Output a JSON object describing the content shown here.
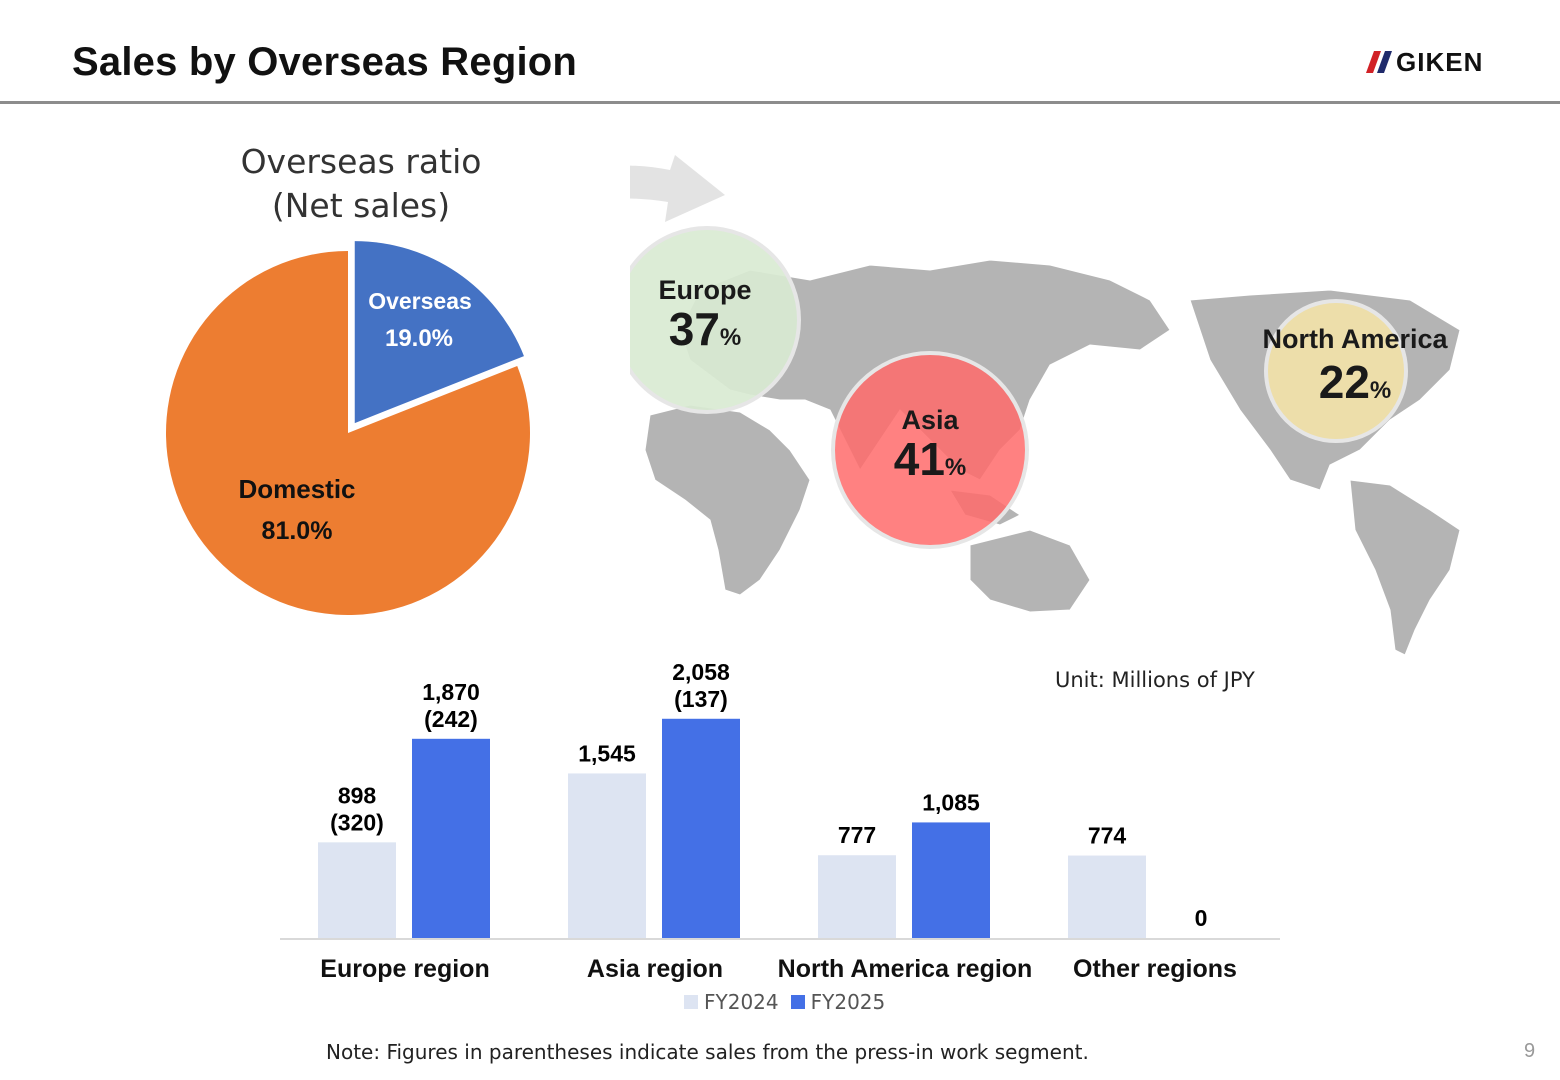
{
  "header": {
    "title": "Sales by Overseas Region",
    "logo_text": "GIKEN"
  },
  "ratio": {
    "title_line1": "Overseas ratio",
    "title_line2": "(Net sales)",
    "overseas_label": "Overseas",
    "overseas_value": "19.0%",
    "domestic_label": "Domestic",
    "domestic_value": "81.0%"
  },
  "regions_share": {
    "europe": {
      "label": "Europe",
      "value": "37",
      "unit": "%"
    },
    "asia": {
      "label": "Asia",
      "value": "41",
      "unit": "%"
    },
    "north_america": {
      "label": "North America",
      "value": "22",
      "unit": "%"
    }
  },
  "unit_text": "Unit: Millions of JPY",
  "note": "Note: Figures in parentheses indicate sales from the press-in work segment.",
  "page_number": "9",
  "colors": {
    "overseas": "#4472c4",
    "domestic": "#ed7d31",
    "fy2024": "#dde4f2",
    "fy2025": "#4470e6",
    "europe_bubble": "#d9ead3",
    "asia_bubble": "#ff6b6b",
    "na_bubble": "#f3e2a9",
    "map_land": "#b0b0b0"
  },
  "chart_data": [
    {
      "type": "pie",
      "title": "Overseas ratio (Net sales)",
      "categories": [
        "Overseas",
        "Domestic"
      ],
      "values": [
        19.0,
        81.0
      ]
    },
    {
      "type": "bar",
      "categories": [
        "Europe region",
        "Asia region",
        "North America region",
        "Other regions"
      ],
      "series": [
        {
          "name": "FY2024",
          "values": [
            898,
            1545,
            777,
            774
          ],
          "press_in": [
            "(320)",
            "",
            "",
            ""
          ]
        },
        {
          "name": "FY2025",
          "values": [
            1870,
            2058,
            1085,
            0
          ],
          "press_in": [
            "(242)",
            "(137)",
            "",
            ""
          ]
        }
      ],
      "value_labels": {
        "FY2024": [
          "898",
          "1,545",
          "777",
          "774"
        ],
        "FY2025": [
          "1,870",
          "2,058",
          "1,085",
          "0"
        ]
      },
      "ylim": [
        0,
        2300
      ],
      "legend": "bottom-center"
    }
  ]
}
